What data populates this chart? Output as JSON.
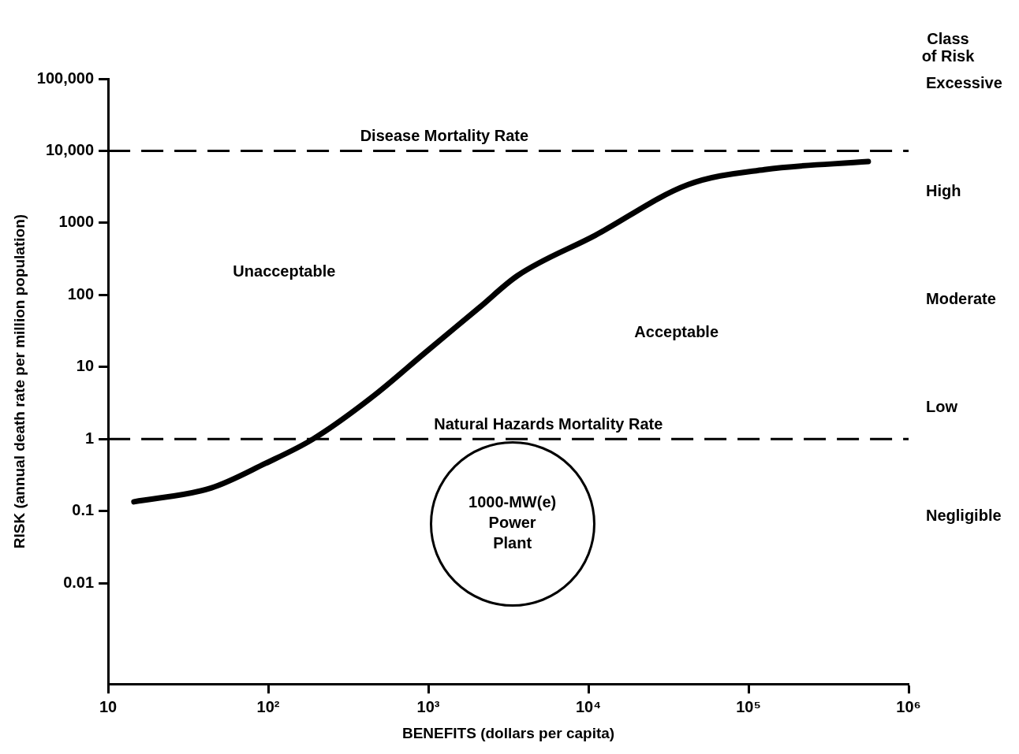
{
  "chart_data": {
    "type": "line",
    "xlabel": "BENEFITS (dollars per capita)",
    "ylabel": "RISK (annual death rate per million population)",
    "y2label": "Class of Risk",
    "log": "xy",
    "xlim": [
      10,
      1000000
    ],
    "xticks": [
      10,
      {
        "value": 100,
        "label": "10²"
      },
      {
        "value": 1000,
        "label": "10³"
      },
      {
        "value": 10000,
        "label": "10⁴"
      },
      {
        "value": 100000,
        "label": "10⁵"
      },
      {
        "value": 1000000,
        "label": "10⁶"
      }
    ],
    "ylim": [
      0.0004,
      100000
    ],
    "yticks": [
      {
        "value": 100000,
        "label": "100,000"
      },
      {
        "value": 10000,
        "label": "10,000"
      },
      1000,
      100,
      10,
      1,
      0.1,
      0.01
    ],
    "y2_categories": [
      "Excessive",
      "High",
      "Moderate",
      "Low",
      "Negligible"
    ],
    "grid": false,
    "legend": false,
    "marker": "none",
    "series": [
      {
        "color": "#000000",
        "x": [
          14.5,
          44,
          96,
          190,
          450,
          960,
          2100,
          3600,
          11000,
          42000,
          126000,
          560000
        ],
        "values": [
          0.135,
          0.21,
          0.46,
          1.0,
          3.9,
          16,
          68,
          185,
          670,
          3400,
          5500,
          7100
        ]
      }
    ],
    "ref_lines": [
      {
        "axis": "y",
        "value": 10000,
        "label": "Disease Mortality Rate",
        "color": "#000000",
        "line_style": "dashed"
      },
      {
        "axis": "y",
        "value": 1,
        "label": "Natural Hazards Mortality Rate",
        "color": "#000000",
        "line_style": "dashed"
      }
    ],
    "annotations": [
      "Unacceptable",
      "Acceptable",
      "1000-MW(e) Power Plant"
    ]
  }
}
